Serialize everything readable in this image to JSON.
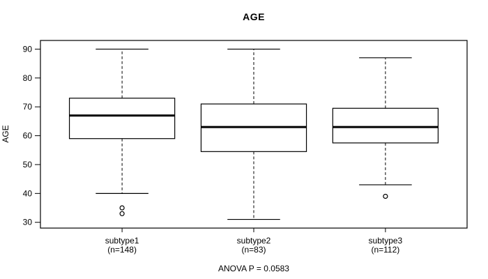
{
  "chart_data": {
    "type": "boxplot",
    "title": "AGE",
    "ylabel": "AGE",
    "annotation": "ANOVA P = 0.0583",
    "anova_p": 0.0583,
    "yticks": [
      30,
      40,
      50,
      60,
      70,
      80,
      90
    ],
    "ylim": [
      28,
      93
    ],
    "grid": false,
    "colors": {
      "stroke": "#000000",
      "box_fill": "#ffffff",
      "background": "#ffffff"
    },
    "groups": [
      {
        "label": "subtype1",
        "sublabel": "(n=148)",
        "n": 148,
        "whisker_low": 40,
        "q1": 59,
        "median": 67,
        "q3": 73,
        "whisker_high": 90,
        "outliers": [
          35,
          33
        ]
      },
      {
        "label": "subtype2",
        "sublabel": "(n=83)",
        "n": 83,
        "whisker_low": 31,
        "q1": 54.5,
        "median": 63,
        "q3": 71,
        "whisker_high": 90,
        "outliers": []
      },
      {
        "label": "subtype3",
        "sublabel": "(n=112)",
        "n": 112,
        "whisker_low": 43,
        "q1": 57.5,
        "median": 63,
        "q3": 69.5,
        "whisker_high": 87,
        "outliers": [
          39
        ]
      }
    ]
  }
}
